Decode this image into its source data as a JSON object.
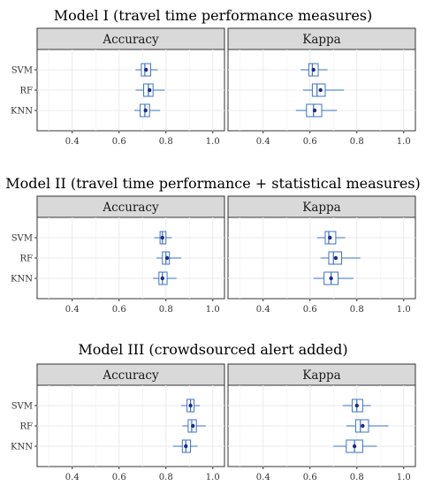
{
  "colors": {
    "box_stroke": "#3a72c4",
    "box_fill": "#ffffff",
    "mean_point": "#1c2a8c",
    "strip_fill": "#d9d9d9",
    "strip_border": "#333333",
    "grid": "#ebebeb"
  },
  "chart_data": [
    {
      "type": "boxplot",
      "title": "Model I (travel time performance measures)",
      "facets": [
        "Accuracy",
        "Kappa"
      ],
      "categories": [
        "SVM",
        "RF",
        "KNN"
      ],
      "xlim": [
        0.25,
        1.05
      ],
      "xticks": [
        "0.4",
        "0.6",
        "0.8",
        "1.0"
      ],
      "grid": true,
      "series": [
        {
          "facet": "Accuracy",
          "stats": [
            {
              "category": "SVM",
              "min": 0.67,
              "q1": 0.695,
              "median": 0.71,
              "q3": 0.735,
              "max": 0.765,
              "mean": 0.715
            },
            {
              "category": "RF",
              "min": 0.67,
              "q1": 0.705,
              "median": 0.725,
              "q3": 0.745,
              "max": 0.795,
              "mean": 0.73
            },
            {
              "category": "KNN",
              "min": 0.665,
              "q1": 0.69,
              "median": 0.71,
              "q3": 0.73,
              "max": 0.775,
              "mean": 0.713
            }
          ]
        },
        {
          "facet": "Kappa",
          "stats": [
            {
              "category": "SVM",
              "min": 0.56,
              "q1": 0.595,
              "median": 0.61,
              "q3": 0.635,
              "max": 0.675,
              "mean": 0.615
            },
            {
              "category": "RF",
              "min": 0.57,
              "q1": 0.61,
              "median": 0.63,
              "q3": 0.665,
              "max": 0.745,
              "mean": 0.645
            },
            {
              "category": "KNN",
              "min": 0.54,
              "q1": 0.585,
              "median": 0.615,
              "q3": 0.65,
              "max": 0.715,
              "mean": 0.62
            }
          ]
        }
      ]
    },
    {
      "type": "boxplot",
      "title": "Model II (travel time performance + statistical measures)",
      "facets": [
        "Accuracy",
        "Kappa"
      ],
      "categories": [
        "SVM",
        "RF",
        "KNN"
      ],
      "xlim": [
        0.25,
        1.05
      ],
      "xticks": [
        "0.4",
        "0.6",
        "0.8",
        "1.0"
      ],
      "grid": true,
      "series": [
        {
          "facet": "Accuracy",
          "stats": [
            {
              "category": "SVM",
              "min": 0.75,
              "q1": 0.775,
              "median": 0.785,
              "q3": 0.8,
              "max": 0.825,
              "mean": 0.785
            },
            {
              "category": "RF",
              "min": 0.76,
              "q1": 0.785,
              "median": 0.8,
              "q3": 0.815,
              "max": 0.865,
              "mean": 0.805
            },
            {
              "category": "KNN",
              "min": 0.745,
              "q1": 0.77,
              "median": 0.785,
              "q3": 0.805,
              "max": 0.845,
              "mean": 0.785
            }
          ]
        },
        {
          "facet": "Kappa",
          "stats": [
            {
              "category": "SVM",
              "min": 0.63,
              "q1": 0.665,
              "median": 0.68,
              "q3": 0.71,
              "max": 0.75,
              "mean": 0.685
            },
            {
              "category": "RF",
              "min": 0.645,
              "q1": 0.68,
              "median": 0.7,
              "q3": 0.735,
              "max": 0.815,
              "mean": 0.71
            },
            {
              "category": "KNN",
              "min": 0.615,
              "q1": 0.66,
              "median": 0.69,
              "q3": 0.72,
              "max": 0.785,
              "mean": 0.69
            }
          ]
        }
      ]
    },
    {
      "type": "boxplot",
      "title": "Model III (crowdsourced alert added)",
      "facets": [
        "Accuracy",
        "Kappa"
      ],
      "categories": [
        "SVM",
        "RF",
        "KNN"
      ],
      "xlim": [
        0.25,
        1.05
      ],
      "xticks": [
        "0.4",
        "0.6",
        "0.8",
        "1.0"
      ],
      "grid": true,
      "series": [
        {
          "facet": "Accuracy",
          "stats": [
            {
              "category": "SVM",
              "min": 0.865,
              "q1": 0.89,
              "median": 0.905,
              "q3": 0.92,
              "max": 0.945,
              "mean": 0.905
            },
            {
              "category": "RF",
              "min": 0.87,
              "q1": 0.895,
              "median": 0.91,
              "q3": 0.93,
              "max": 0.97,
              "mean": 0.915
            },
            {
              "category": "KNN",
              "min": 0.83,
              "q1": 0.87,
              "median": 0.885,
              "q3": 0.905,
              "max": 0.935,
              "mean": 0.885
            }
          ]
        },
        {
          "facet": "Kappa",
          "stats": [
            {
              "category": "SVM",
              "min": 0.74,
              "q1": 0.78,
              "median": 0.8,
              "q3": 0.825,
              "max": 0.86,
              "mean": 0.8
            },
            {
              "category": "RF",
              "min": 0.755,
              "q1": 0.795,
              "median": 0.815,
              "q3": 0.85,
              "max": 0.935,
              "mean": 0.825
            },
            {
              "category": "KNN",
              "min": 0.7,
              "q1": 0.755,
              "median": 0.79,
              "q3": 0.825,
              "max": 0.885,
              "mean": 0.79
            }
          ]
        }
      ]
    }
  ]
}
